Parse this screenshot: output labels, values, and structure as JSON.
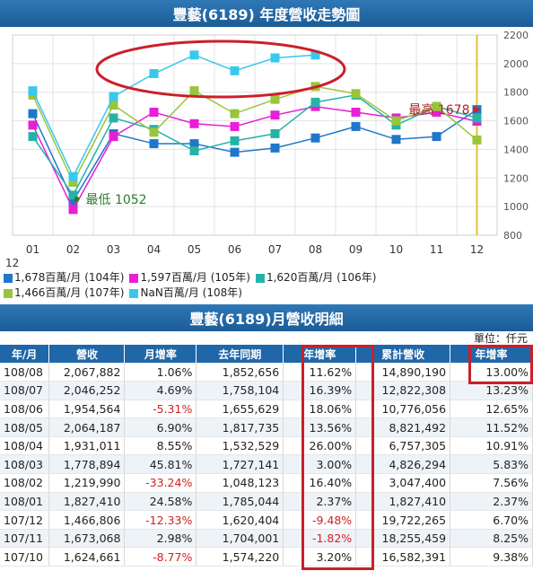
{
  "chart_title": "豐藝(6189) 年度營收走勢圖",
  "chart_data": {
    "type": "line",
    "categories": [
      "01",
      "02",
      "03",
      "04",
      "05",
      "06",
      "07",
      "08",
      "09",
      "10",
      "11",
      "12"
    ],
    "x_axis_extra_label": "12",
    "ylim": [
      800,
      2200
    ],
    "yticks": [
      "800",
      "1000",
      "1200",
      "1400",
      "1600",
      "1800",
      "2000",
      "2200"
    ],
    "series": [
      {
        "name": "1,678百萬/月 (104年)",
        "color": "#1f77c9",
        "values": [
          1650,
          1040,
          1510,
          1440,
          1440,
          1380,
          1410,
          1480,
          1560,
          1470,
          1490,
          1678
        ]
      },
      {
        "name": "1,597百萬/月 (105年)",
        "color": "#e81fd6",
        "values": [
          1570,
          980,
          1490,
          1660,
          1580,
          1560,
          1640,
          1700,
          1660,
          1620,
          1660,
          1597
        ]
      },
      {
        "name": "1,620百萬/月 (106年)",
        "color": "#26b3a7",
        "values": [
          1490,
          1080,
          1620,
          1540,
          1390,
          1460,
          1510,
          1730,
          1780,
          1570,
          1700,
          1620
        ]
      },
      {
        "name": "1,466百萬/月 (107年)",
        "color": "#98c53a",
        "values": [
          1780,
          1170,
          1710,
          1520,
          1810,
          1650,
          1750,
          1840,
          1790,
          1600,
          1700,
          1466
        ]
      },
      {
        "name": "NaN百萬/月 (108年)",
        "color": "#38c8ec",
        "values": [
          1810,
          1210,
          1770,
          1930,
          2060,
          1950,
          2040,
          2060,
          null,
          null,
          null,
          null
        ]
      }
    ],
    "annotations": {
      "min_label": "最低 1052",
      "max_label": "最高 1678"
    }
  },
  "table": {
    "title": "豐藝(6189)月營收明細",
    "unit": "單位：仟元",
    "headers": [
      "年/月",
      "營收",
      "月增率",
      "去年同期",
      "年增率",
      "累計營收",
      "年增率"
    ],
    "rows": [
      [
        "108/08",
        "2,067,882",
        "1.06%",
        "1,852,656",
        "11.62%",
        "14,890,190",
        "13.00%"
      ],
      [
        "108/07",
        "2,046,252",
        "4.69%",
        "1,758,104",
        "16.39%",
        "12,822,308",
        "13.23%"
      ],
      [
        "108/06",
        "1,954,564",
        "-5.31%",
        "1,655,629",
        "18.06%",
        "10,776,056",
        "12.65%"
      ],
      [
        "108/05",
        "2,064,187",
        "6.90%",
        "1,817,735",
        "13.56%",
        "8,821,492",
        "11.52%"
      ],
      [
        "108/04",
        "1,931,011",
        "8.55%",
        "1,532,529",
        "26.00%",
        "6,757,305",
        "10.91%"
      ],
      [
        "108/03",
        "1,778,894",
        "45.81%",
        "1,727,141",
        "3.00%",
        "4,826,294",
        "5.83%"
      ],
      [
        "108/02",
        "1,219,990",
        "-33.24%",
        "1,048,123",
        "16.40%",
        "3,047,400",
        "7.56%"
      ],
      [
        "108/01",
        "1,827,410",
        "24.58%",
        "1,785,044",
        "2.37%",
        "1,827,410",
        "2.37%"
      ],
      [
        "107/12",
        "1,466,806",
        "-12.33%",
        "1,620,404",
        "-9.48%",
        "19,722,265",
        "6.70%"
      ],
      [
        "107/11",
        "1,673,068",
        "2.98%",
        "1,704,001",
        "-1.82%",
        "18,255,459",
        "8.25%"
      ],
      [
        "107/10",
        "1,624,661",
        "-8.77%",
        "1,574,220",
        "3.20%",
        "16,582,391",
        "9.38%"
      ]
    ]
  },
  "colors": {
    "header_blue": "#1f67a8",
    "highlight_red": "#cc1f2a",
    "negative_red": "#d42020"
  }
}
